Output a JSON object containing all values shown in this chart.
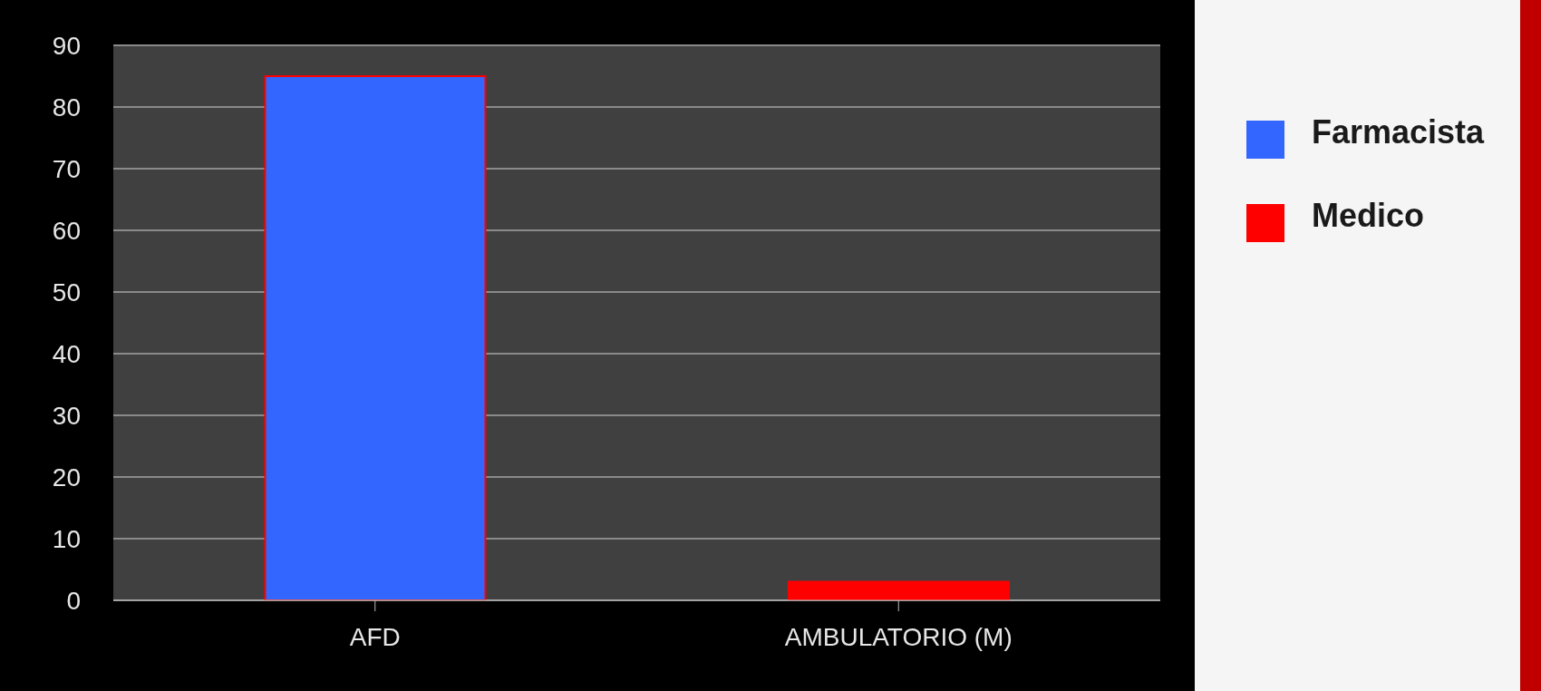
{
  "chart_data": {
    "type": "bar",
    "stacked": true,
    "categories": [
      "AFD",
      "AMBULATORIO (M)"
    ],
    "series": [
      {
        "name": "Farmacista",
        "color": "#3366ff",
        "values": [
          85,
          0
        ]
      },
      {
        "name": "Medico",
        "color": "#ff0000",
        "values": [
          0,
          3
        ]
      }
    ],
    "ylim": [
      0,
      90
    ],
    "yticks": [
      0,
      10,
      20,
      30,
      40,
      50,
      60,
      70,
      80,
      90
    ],
    "grid": "y",
    "legend": "right"
  }
}
